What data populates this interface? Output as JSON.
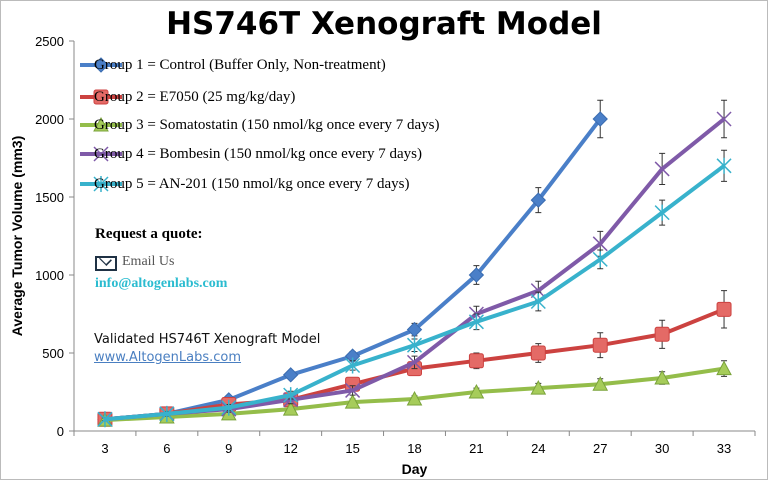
{
  "chart_data": {
    "type": "line",
    "title": "HS746T  Xenograft Model",
    "xlabel": "Day",
    "ylabel": "Average Tumor Volume (mm3)",
    "x": [
      3,
      6,
      9,
      12,
      15,
      18,
      21,
      24,
      27,
      30,
      33
    ],
    "ylim": [
      0,
      2500
    ],
    "yticks": [
      0,
      500,
      1000,
      1500,
      2000,
      2500
    ],
    "grid": false,
    "legend_placement": "top-left",
    "series": [
      {
        "name": "Group 1 = Control (Buffer Only, Non-treatment)",
        "color": "#4a7fc8",
        "marker": "diamond",
        "values": [
          75,
          110,
          200,
          360,
          480,
          650,
          1000,
          1480,
          2000,
          null,
          null
        ],
        "errors": [
          10,
          15,
          20,
          25,
          30,
          40,
          60,
          80,
          120,
          null,
          null
        ]
      },
      {
        "name": "Group 2 = E7050 (25 mg/kg/day)",
        "color": "#cc4240",
        "marker": "square",
        "values": [
          75,
          110,
          170,
          200,
          300,
          400,
          450,
          500,
          550,
          620,
          780
        ],
        "errors": [
          10,
          15,
          20,
          25,
          30,
          40,
          50,
          60,
          80,
          90,
          120
        ]
      },
      {
        "name": "Group 3 = Somatostatin (150 nmol/kg once every 7 days)",
        "color": "#94bd4a",
        "marker": "triangle",
        "values": [
          70,
          90,
          110,
          140,
          185,
          205,
          250,
          275,
          300,
          340,
          400
        ],
        "errors": [
          10,
          10,
          15,
          15,
          20,
          20,
          25,
          30,
          35,
          40,
          50
        ]
      },
      {
        "name": "Group 4 = Bombesin (150 nmol/kg once every 7 days)",
        "color": "#7f5aa8",
        "marker": "x",
        "values": [
          75,
          110,
          140,
          200,
          260,
          440,
          750,
          900,
          1200,
          1680,
          2000
        ],
        "errors": [
          10,
          15,
          20,
          25,
          30,
          40,
          50,
          60,
          80,
          100,
          120
        ]
      },
      {
        "name": "Group 5 = AN-201 (150 nmol/kg once every 7 days)",
        "color": "#38b2cc",
        "marker": "star",
        "values": [
          75,
          110,
          150,
          230,
          420,
          550,
          700,
          830,
          1100,
          1400,
          1700
        ],
        "errors": [
          10,
          15,
          20,
          25,
          30,
          40,
          50,
          60,
          60,
          80,
          100
        ]
      }
    ]
  },
  "promo": {
    "quote": "Request a quote:",
    "email_us": "Email Us",
    "email": "info@altogenlabs.com",
    "validated": "Validated HS746T Xenograft Model",
    "website": "www.AltogenLabs.com"
  }
}
